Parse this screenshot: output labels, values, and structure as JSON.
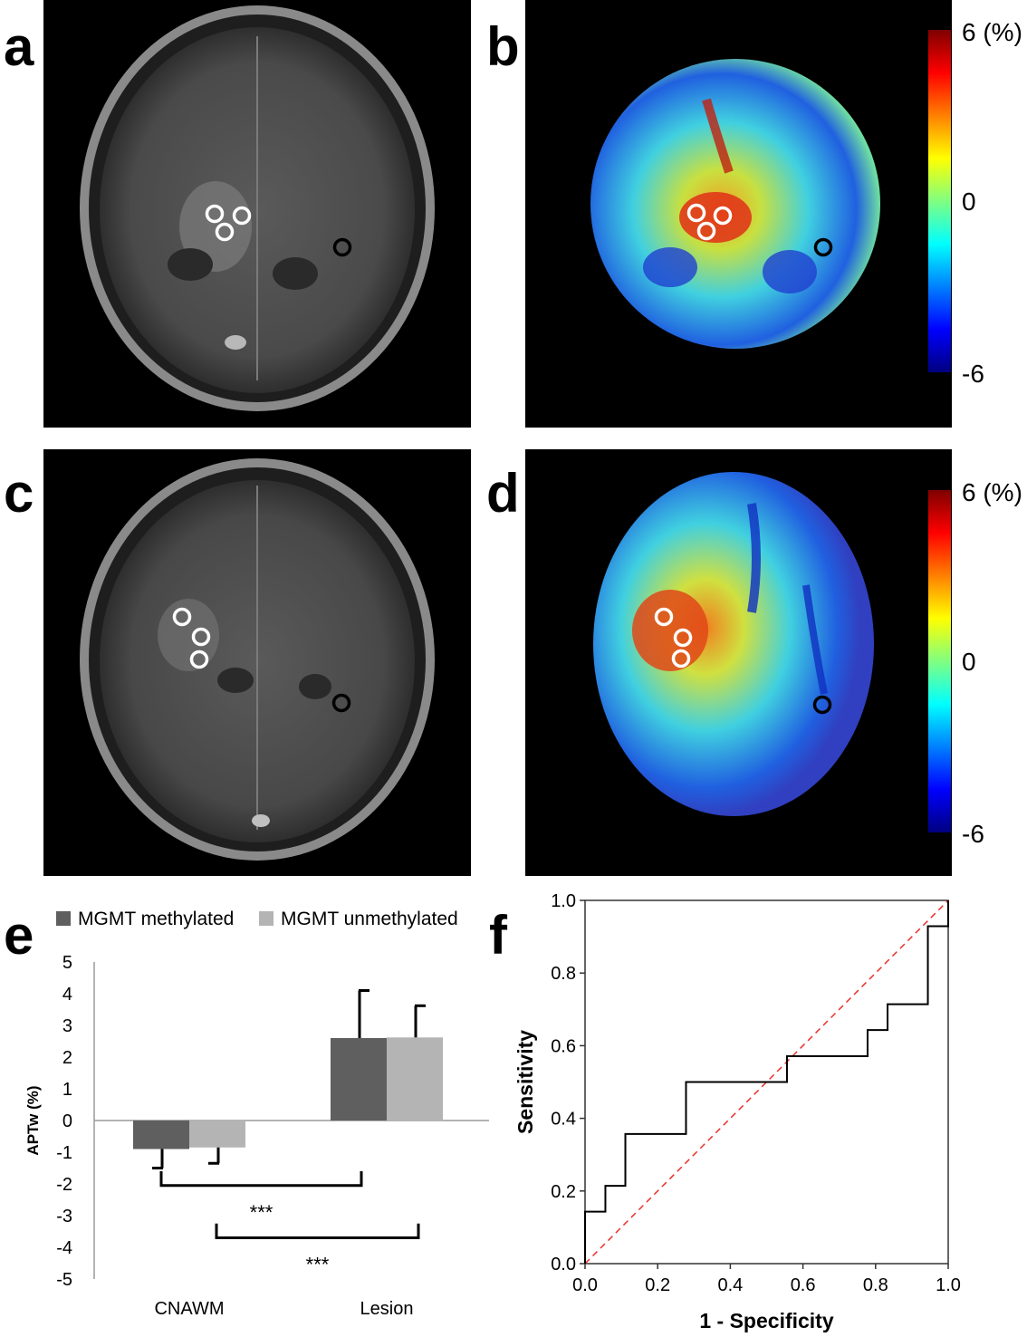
{
  "panels": {
    "a": {
      "letter": "a"
    },
    "b": {
      "letter": "b"
    },
    "c": {
      "letter": "c"
    },
    "d": {
      "letter": "d"
    },
    "e": {
      "letter": "e"
    },
    "f": {
      "letter": "f"
    }
  },
  "colorbar_b": {
    "max_label": "6 (%)",
    "mid_label": "0",
    "min_label": "-6"
  },
  "colorbar_d": {
    "max_label": "6 (%)",
    "mid_label": "0",
    "min_label": "-6"
  },
  "chart_data": [
    {
      "type": "bar",
      "panel": "e",
      "title": "",
      "categories": [
        "CNAWM",
        "Lesion"
      ],
      "series": [
        {
          "name": "MGMT methylated",
          "color": "#5f5f5f",
          "values": [
            -0.9,
            2.6
          ],
          "error_plus": [
            0,
            1.5
          ],
          "error_minus": [
            0.6,
            0
          ]
        },
        {
          "name": "MGMT unmethylated",
          "color": "#b4b4b4",
          "values": [
            -0.85,
            2.62
          ],
          "error_plus": [
            0,
            1.0
          ],
          "error_minus": [
            0.5,
            0
          ]
        }
      ],
      "ylabel": "APTw (%)",
      "xlabel": "",
      "ylim": [
        -5,
        5
      ],
      "yticks": [
        "5",
        "4",
        "3",
        "2",
        "1",
        "0",
        "-1",
        "-2",
        "-3",
        "-4",
        "-5"
      ],
      "significance": [
        {
          "label": "***",
          "from": "MGMT methylated CNAWM",
          "to": "MGMT methylated Lesion"
        },
        {
          "label": "***",
          "from": "MGMT unmethylated CNAWM",
          "to": "MGMT unmethylated Lesion"
        }
      ]
    },
    {
      "type": "line",
      "panel": "f",
      "title": "",
      "xlabel": "1 - Specificity",
      "ylabel": "Sensitivity",
      "xlim": [
        0,
        1
      ],
      "ylim": [
        0,
        1
      ],
      "xticks": [
        "0.0",
        "0.2",
        "0.4",
        "0.6",
        "0.8",
        "1.0"
      ],
      "yticks": [
        "0.0",
        "0.2",
        "0.4",
        "0.6",
        "0.8",
        "1.0"
      ],
      "roc_x": [
        0,
        0,
        0.056,
        0.056,
        0.111,
        0.111,
        0.278,
        0.278,
        0.556,
        0.556,
        0.778,
        0.778,
        0.833,
        0.833,
        0.944,
        0.944,
        1.0,
        1.0
      ],
      "roc_y": [
        0,
        0.143,
        0.143,
        0.214,
        0.214,
        0.357,
        0.357,
        0.5,
        0.5,
        0.571,
        0.571,
        0.643,
        0.643,
        0.714,
        0.714,
        0.929,
        0.929,
        1.0
      ],
      "reference_line": {
        "x": [
          0,
          1
        ],
        "y": [
          0,
          1
        ],
        "color": "#e8322b"
      }
    }
  ]
}
